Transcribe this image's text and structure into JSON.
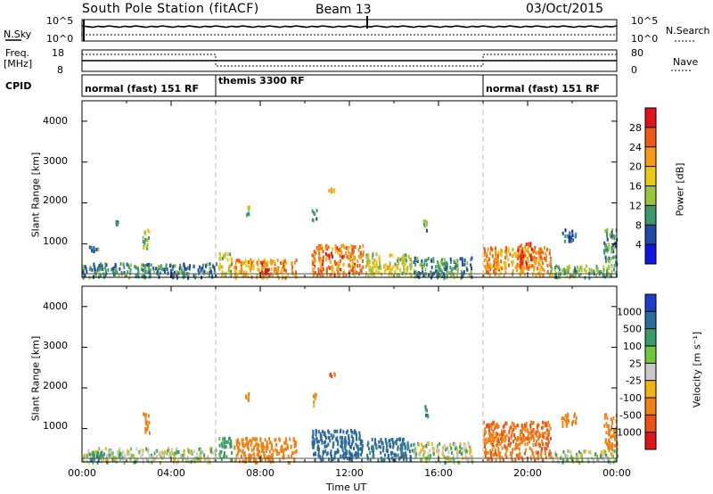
{
  "header": {
    "title": "South Pole Station (fitACF)",
    "beam": "Beam 13",
    "date": "03/Oct/2015"
  },
  "strip_labels": {
    "nsky": "N.Sky",
    "freq": "Freq.",
    "freq_unit": "[MHz]",
    "cpid": "CPID",
    "nsearch": "N.Search",
    "nave": "Nave"
  },
  "strip_ticks": {
    "nsky_top": "10^5",
    "nsky_bottom": "10^0",
    "freq_top": "18",
    "freq_bottom": "8",
    "nsearch_top": "10^5",
    "nsearch_bottom": "10^0",
    "nave_top": "80",
    "nave_bottom": "0"
  },
  "cpid_segments": [
    {
      "label": "normal (fast) 151 RF",
      "start": 0,
      "end": 6
    },
    {
      "label": "themis 3300 RF",
      "start": 6,
      "end": 18
    },
    {
      "label": "normal (fast) 151 RF",
      "start": 18,
      "end": 24
    }
  ],
  "xaxis": {
    "label": "Time UT",
    "ticks": [
      "00:00",
      "04:00",
      "08:00",
      "12:00",
      "16:00",
      "20:00",
      "00:00"
    ],
    "range_hours": [
      0,
      24
    ]
  },
  "power_panel": {
    "ylabel": "Slant Range [km]",
    "yticks": [
      "1000",
      "2000",
      "3000",
      "4000"
    ],
    "colorbar_label": "Power [dB]",
    "colorbar_ticks": [
      "28",
      "24",
      "20",
      "16",
      "12",
      "8",
      "4"
    ],
    "colorbar_colors": [
      "#e0101c",
      "#ee5a14",
      "#f59a14",
      "#ecc814",
      "#9ac43c",
      "#3c9a6a",
      "#1e4aa6",
      "#1414e0"
    ]
  },
  "velocity_panel": {
    "ylabel": "Slant Range [km]",
    "yticks": [
      "1000",
      "2000",
      "3000",
      "4000"
    ],
    "colorbar_label": "Velocity [m s⁻¹]",
    "colorbar_ticks": [
      "1000",
      "500",
      "100",
      "25",
      "-25",
      "-100",
      "-500",
      "-1000"
    ],
    "colorbar_colors": [
      "#1e3cc8",
      "#2a6a9c",
      "#3a9a6a",
      "#70c83c",
      "#c8c8c8",
      "#f0b414",
      "#f08214",
      "#ee5014",
      "#e01414"
    ]
  },
  "chart_data": [
    {
      "type": "heatmap",
      "title": "South Pole Station (fitACF) Beam 13 03/Oct/2015",
      "quantity": "Power",
      "unit": "dB",
      "xlabel": "Time UT",
      "ylabel": "Slant Range [km]",
      "xlim_hours": [
        0,
        24
      ],
      "ylim_km": [
        180,
        4500
      ],
      "clim": [
        0,
        30
      ],
      "patches": [
        {
          "t0": 0.0,
          "t1": 6.0,
          "r0": 200,
          "r1": 550,
          "v": 9
        },
        {
          "t0": 0.3,
          "t1": 0.7,
          "r0": 800,
          "r1": 1000,
          "v": 10
        },
        {
          "t0": 2.7,
          "t1": 3.0,
          "r0": 900,
          "r1": 1400,
          "v": 14
        },
        {
          "t0": 1.5,
          "t1": 1.6,
          "r0": 1500,
          "r1": 1600,
          "v": 8
        },
        {
          "t0": 6.1,
          "t1": 6.7,
          "r0": 250,
          "r1": 800,
          "v": 16
        },
        {
          "t0": 7.3,
          "t1": 7.5,
          "r0": 1700,
          "r1": 2000,
          "v": 12
        },
        {
          "t0": 6.8,
          "t1": 9.6,
          "r0": 200,
          "r1": 650,
          "v": 22
        },
        {
          "t0": 8.0,
          "t1": 8.4,
          "r0": 250,
          "r1": 600,
          "v": 28
        },
        {
          "t0": 10.3,
          "t1": 12.6,
          "r0": 250,
          "r1": 1000,
          "v": 24
        },
        {
          "t0": 10.3,
          "t1": 10.5,
          "r0": 1600,
          "r1": 1900,
          "v": 10
        },
        {
          "t0": 11.0,
          "t1": 11.4,
          "r0": 2300,
          "r1": 2400,
          "v": 20
        },
        {
          "t0": 12.7,
          "t1": 14.8,
          "r0": 250,
          "r1": 800,
          "v": 16
        },
        {
          "t0": 14.8,
          "t1": 17.5,
          "r0": 200,
          "r1": 700,
          "v": 10
        },
        {
          "t0": 15.3,
          "t1": 15.5,
          "r0": 1300,
          "r1": 1600,
          "v": 12
        },
        {
          "t0": 18.0,
          "t1": 21.0,
          "r0": 250,
          "r1": 950,
          "v": 22
        },
        {
          "t0": 19.5,
          "t1": 20.2,
          "r0": 400,
          "r1": 1050,
          "v": 26
        },
        {
          "t0": 21.5,
          "t1": 22.2,
          "r0": 1100,
          "r1": 1400,
          "v": 8
        },
        {
          "t0": 23.4,
          "t1": 24.0,
          "r0": 500,
          "r1": 1400,
          "v": 10
        },
        {
          "t0": 21.0,
          "t1": 24.0,
          "r0": 200,
          "r1": 500,
          "v": 12
        }
      ]
    },
    {
      "type": "heatmap",
      "quantity": "Velocity",
      "unit": "m s-1",
      "xlabel": "Time UT",
      "ylabel": "Slant Range [km]",
      "xlim_hours": [
        0,
        24
      ],
      "ylim_km": [
        180,
        4500
      ],
      "clim": [
        -1000,
        1000
      ],
      "patches": [
        {
          "t0": 0.0,
          "t1": 6.0,
          "r0": 200,
          "r1": 550,
          "v": 0
        },
        {
          "t0": 0.3,
          "t1": 1.0,
          "r0": 250,
          "r1": 450,
          "v": 80
        },
        {
          "t0": 2.7,
          "t1": 3.0,
          "r0": 900,
          "r1": 1400,
          "v": -300
        },
        {
          "t0": 6.1,
          "t1": 6.7,
          "r0": 250,
          "r1": 800,
          "v": 60
        },
        {
          "t0": 7.3,
          "t1": 7.5,
          "r0": 1700,
          "r1": 2000,
          "v": -200
        },
        {
          "t0": 6.8,
          "t1": 9.6,
          "r0": 200,
          "r1": 800,
          "v": -250
        },
        {
          "t0": 10.3,
          "t1": 12.6,
          "r0": 250,
          "r1": 1000,
          "v": 200
        },
        {
          "t0": 10.3,
          "t1": 10.5,
          "r0": 1600,
          "r1": 1900,
          "v": -150
        },
        {
          "t0": 11.0,
          "t1": 11.4,
          "r0": 2300,
          "r1": 2400,
          "v": -600
        },
        {
          "t0": 12.7,
          "t1": 14.8,
          "r0": 250,
          "r1": 800,
          "v": 150
        },
        {
          "t0": 14.8,
          "t1": 17.5,
          "r0": 200,
          "r1": 700,
          "v": 0
        },
        {
          "t0": 15.3,
          "t1": 15.5,
          "r0": 1300,
          "r1": 1600,
          "v": 120
        },
        {
          "t0": 18.0,
          "t1": 21.0,
          "r0": 250,
          "r1": 1200,
          "v": -450
        },
        {
          "t0": 21.5,
          "t1": 22.2,
          "r0": 1100,
          "r1": 1400,
          "v": -200
        },
        {
          "t0": 23.4,
          "t1": 24.0,
          "r0": 500,
          "r1": 1400,
          "v": -300
        },
        {
          "t0": 21.0,
          "t1": 24.0,
          "r0": 200,
          "r1": 500,
          "v": 0
        }
      ]
    }
  ]
}
